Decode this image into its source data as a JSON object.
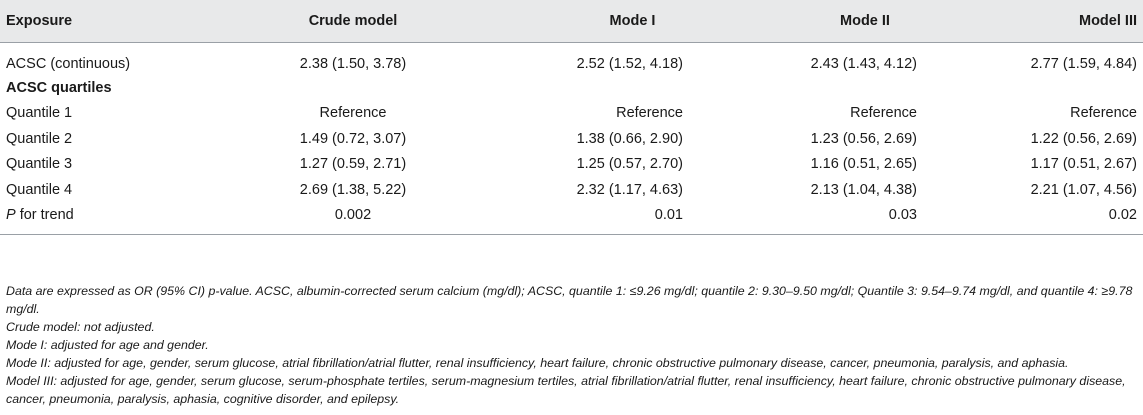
{
  "table": {
    "headers": [
      "Exposure",
      "Crude model",
      "Mode I",
      "Mode II",
      "Model III"
    ],
    "rows": [
      {
        "label": "ACSC (continuous)",
        "values": [
          "2.38 (1.50, 3.78)",
          "2.52 (1.52, 4.18)",
          "2.43 (1.43, 4.12)",
          "2.77 (1.59, 4.84)"
        ]
      },
      {
        "section": "ACSC quartiles"
      },
      {
        "label": "Quantile 1",
        "values": [
          "Reference",
          "Reference",
          "Reference",
          "Reference"
        ]
      },
      {
        "label": "Quantile 2",
        "values": [
          "1.49 (0.72, 3.07)",
          "1.38 (0.66, 2.90)",
          "1.23 (0.56, 2.69)",
          "1.22 (0.56, 2.69)"
        ]
      },
      {
        "label": "Quantile 3",
        "values": [
          "1.27 (0.59, 2.71)",
          "1.25 (0.57, 2.70)",
          "1.16 (0.51, 2.65)",
          "1.17 (0.51, 2.67)"
        ]
      },
      {
        "label": "Quantile 4",
        "values": [
          "2.69 (1.38, 5.22)",
          "2.32 (1.17, 4.63)",
          "2.13 (1.04, 4.38)",
          "2.21 (1.07, 4.56)"
        ]
      },
      {
        "label_italic": "P",
        "label_rest": " for trend",
        "values": [
          "0.002",
          "0.01",
          "0.03",
          "0.02"
        ]
      }
    ]
  },
  "notes": [
    "Data are expressed as OR (95% CI) p-value. ACSC, albumin-corrected serum calcium (mg/dl); ACSC, quantile 1: ≤9.26 mg/dl; quantile 2: 9.30–9.50 mg/dl; Quantile 3: 9.54–9.74 mg/dl, and quantile 4: ≥9.78 mg/dl.",
    "Crude model: not adjusted.",
    "Mode I: adjusted for age and gender.",
    "Mode II: adjusted for age, gender, serum glucose, atrial fibrillation/atrial flutter, renal insufficiency, heart failure, chronic obstructive pulmonary disease, cancer, pneumonia, paralysis, and aphasia.",
    "Model III: adjusted for age, gender, serum glucose, serum-phosphate tertiles, serum-magnesium tertiles, atrial fibrillation/atrial flutter, renal insufficiency, heart failure, chronic obstructive pulmonary disease, cancer, pneumonia, paralysis, aphasia, cognitive disorder, and epilepsy."
  ]
}
